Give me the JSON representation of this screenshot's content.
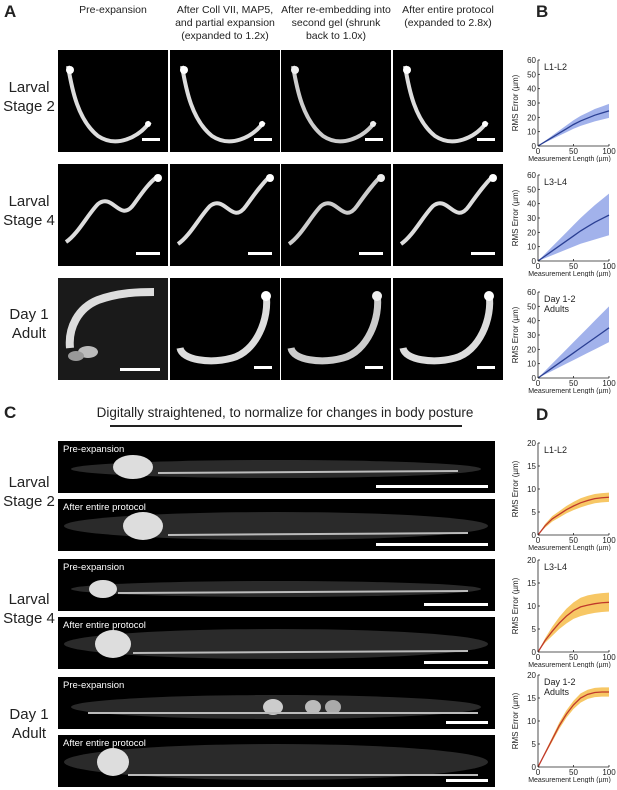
{
  "panels": {
    "A": "A",
    "B": "B",
    "C": "C",
    "D": "D"
  },
  "panel_a": {
    "columns": [
      "Pre-expansion",
      "After Coll VII, MAP5, and partial expansion (expanded to 1.2x)",
      "After re-embedding into second gel (shrunk back to 1.0x)",
      "After entire protocol (expanded to 2.8x)"
    ],
    "rows": [
      "Larval Stage 2",
      "Larval Stage 4",
      "Day 1 Adult"
    ]
  },
  "panel_c": {
    "title": "Digitally straightened, to normalize for changes in body posture",
    "rows": [
      "Larval Stage 2",
      "Larval Stage 4",
      "Day 1 Adult"
    ],
    "image_labels": [
      "Pre-expansion",
      "After entire protocol",
      "Pre-expansion",
      "After entire protocol",
      "Pre-expansion",
      "After entire protocol"
    ]
  },
  "colors": {
    "panel_b": "#2a3f93",
    "panel_b_band": "#8b9fe6",
    "panel_d": "#c0392b",
    "panel_d_band": "#f5b93f"
  },
  "chart_data": [
    {
      "id": "B1",
      "type": "line",
      "annotation": "L1-L2",
      "xlabel": "Measurement Length (µm)",
      "ylabel": "RMS Error (µm)",
      "xlim": [
        0,
        100
      ],
      "ylim": [
        0,
        60
      ],
      "xticks": [
        0,
        50,
        100
      ],
      "yticks": [
        0,
        10,
        20,
        30,
        40,
        50,
        60
      ],
      "x": [
        0,
        10,
        20,
        30,
        40,
        50,
        60,
        70,
        80,
        90,
        100
      ],
      "mean": [
        0,
        3,
        6,
        9,
        12,
        15,
        17.5,
        19.5,
        21.5,
        23,
        24.5
      ],
      "lower": [
        0,
        2.4,
        4.8,
        7.2,
        9.6,
        12,
        14,
        15.6,
        17.2,
        18.4,
        19.6
      ],
      "upper": [
        0,
        3.6,
        7.2,
        10.8,
        14.4,
        18,
        21,
        23.4,
        25.8,
        27.6,
        29.4
      ],
      "color": "#2a3f93",
      "band": "#8b9fe6"
    },
    {
      "id": "B2",
      "type": "line",
      "annotation": "L3-L4",
      "xlabel": "Measurement Length (µm)",
      "ylabel": "RMS Error (µm)",
      "xlim": [
        0,
        100
      ],
      "ylim": [
        0,
        60
      ],
      "xticks": [
        0,
        50,
        100
      ],
      "yticks": [
        0,
        10,
        20,
        30,
        40,
        50,
        60
      ],
      "x": [
        0,
        10,
        20,
        30,
        40,
        50,
        60,
        70,
        80,
        90,
        100
      ],
      "mean": [
        0,
        3.5,
        7,
        10.5,
        14,
        17.5,
        21,
        24,
        27,
        29.5,
        32
      ],
      "lower": [
        0,
        2,
        4,
        6,
        8,
        10,
        12,
        13.5,
        15,
        16.5,
        18
      ],
      "upper": [
        0,
        5,
        10,
        15,
        20,
        25,
        30,
        34.5,
        39,
        43,
        47
      ],
      "color": "#2a3f93",
      "band": "#8b9fe6"
    },
    {
      "id": "B3",
      "type": "line",
      "annotation": "Day 1-2 Adults",
      "xlabel": "Measurement Length (µm)",
      "ylabel": "RMS Error (µm)",
      "xlim": [
        0,
        100
      ],
      "ylim": [
        0,
        60
      ],
      "xticks": [
        0,
        50,
        100
      ],
      "yticks": [
        0,
        10,
        20,
        30,
        40,
        50,
        60
      ],
      "x": [
        0,
        10,
        20,
        30,
        40,
        50,
        60,
        70,
        80,
        90,
        100
      ],
      "mean": [
        0,
        3.5,
        7,
        10.5,
        14,
        17.5,
        21,
        24.5,
        28,
        31.5,
        35
      ],
      "lower": [
        0,
        2.5,
        5,
        7.5,
        10,
        12.5,
        15,
        17.5,
        20,
        22.5,
        25
      ],
      "upper": [
        0,
        5,
        10,
        15,
        20,
        25,
        30,
        35,
        40,
        45,
        50
      ],
      "color": "#2a3f93",
      "band": "#8b9fe6"
    },
    {
      "id": "D1",
      "type": "line",
      "annotation": "L1-L2",
      "xlabel": "Measurement Length (µm)",
      "ylabel": "RMS Error (µm)",
      "xlim": [
        0,
        100
      ],
      "ylim": [
        0,
        20
      ],
      "xticks": [
        0,
        50,
        100
      ],
      "yticks": [
        0,
        5,
        10,
        15,
        20
      ],
      "x": [
        0,
        10,
        20,
        30,
        40,
        50,
        60,
        70,
        80,
        90,
        100
      ],
      "mean": [
        0,
        2,
        3.5,
        4.5,
        5.5,
        6.3,
        7,
        7.5,
        7.9,
        8.1,
        8.2
      ],
      "lower": [
        0,
        1.6,
        2.9,
        3.8,
        4.7,
        5.4,
        6,
        6.5,
        6.9,
        7.1,
        7.2
      ],
      "upper": [
        0,
        2.4,
        4.1,
        5.2,
        6.3,
        7.2,
        8,
        8.5,
        8.9,
        9.1,
        9.2
      ],
      "color": "#c0392b",
      "band": "#f5b93f"
    },
    {
      "id": "D2",
      "type": "line",
      "annotation": "L3-L4",
      "xlabel": "Measurement Length (µm)",
      "ylabel": "RMS Error (µm)",
      "xlim": [
        0,
        100
      ],
      "ylim": [
        0,
        20
      ],
      "xticks": [
        0,
        50,
        100
      ],
      "yticks": [
        0,
        5,
        10,
        15,
        20
      ],
      "x": [
        0,
        10,
        20,
        30,
        40,
        50,
        60,
        70,
        80,
        90,
        100
      ],
      "mean": [
        0,
        2.5,
        4.5,
        6.3,
        7.8,
        9,
        9.8,
        10.2,
        10.5,
        10.7,
        10.8
      ],
      "lower": [
        0,
        2,
        3.5,
        5,
        6.2,
        7.2,
        7.8,
        8.2,
        8.5,
        8.7,
        8.8
      ],
      "upper": [
        0,
        3,
        5.5,
        7.6,
        9.4,
        10.8,
        11.8,
        12.3,
        12.6,
        12.8,
        12.9
      ],
      "color": "#c0392b",
      "band": "#f5b93f"
    },
    {
      "id": "D3",
      "type": "line",
      "annotation": "Day 1-2 Adults",
      "xlabel": "Measurement Length (µm)",
      "ylabel": "RMS Error (µm)",
      "xlim": [
        0,
        100
      ],
      "ylim": [
        0,
        20
      ],
      "xticks": [
        0,
        50,
        100
      ],
      "yticks": [
        0,
        5,
        10,
        15,
        20
      ],
      "x": [
        0,
        10,
        20,
        30,
        40,
        50,
        60,
        70,
        80,
        90,
        100
      ],
      "mean": [
        0,
        3,
        6,
        9,
        11.5,
        13.5,
        15,
        15.8,
        16.2,
        16.3,
        16.3
      ],
      "lower": [
        0,
        2.7,
        5.5,
        8.3,
        10.7,
        12.6,
        14,
        14.8,
        15.2,
        15.3,
        15.3
      ],
      "upper": [
        0,
        3.3,
        6.5,
        9.7,
        12.3,
        14.4,
        16,
        16.8,
        17.2,
        17.3,
        17.3
      ],
      "color": "#c0392b",
      "band": "#f5b93f"
    }
  ]
}
